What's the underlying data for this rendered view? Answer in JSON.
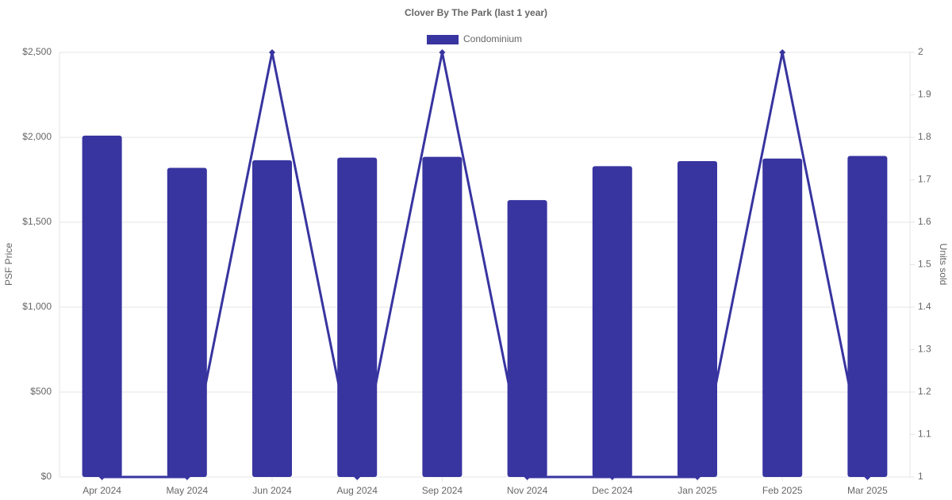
{
  "chart_data": {
    "type": "bar-line",
    "title": "Clover By The Park (last 1 year)",
    "y_label": "PSF Price",
    "y2_label": "Units sold",
    "categories": [
      "Apr 2024",
      "May 2024",
      "Jun 2024",
      "Aug 2024",
      "Sep 2024",
      "Nov 2024",
      "Dec 2024",
      "Jan 2025",
      "Feb 2025",
      "Mar 2025"
    ],
    "series": [
      {
        "name": "Condominium",
        "type": "bar",
        "color": "#3834a0",
        "values": [
          2010,
          1820,
          1865,
          1880,
          1885,
          1630,
          1830,
          1860,
          1875,
          1890
        ]
      },
      {
        "type": "line",
        "axis": "y2",
        "color": "#3834a0",
        "values": [
          1,
          1,
          2,
          1,
          2,
          1,
          1,
          1,
          2,
          1
        ]
      }
    ],
    "ylim": [
      0,
      2500
    ],
    "yticks": [
      {
        "value": 0,
        "label": "$0"
      },
      {
        "value": 500,
        "label": "$500"
      },
      {
        "value": 1000,
        "label": "$1,000"
      },
      {
        "value": 1500,
        "label": "$1,500"
      },
      {
        "value": 2000,
        "label": "$2,000"
      },
      {
        "value": 2500,
        "label": "$2,500"
      }
    ],
    "y2lim": [
      1,
      2
    ],
    "y2ticks": [
      1,
      1.1,
      1.2,
      1.3,
      1.4,
      1.5,
      1.6,
      1.7,
      1.8,
      1.9,
      2
    ],
    "grid": true,
    "legend": "top"
  }
}
